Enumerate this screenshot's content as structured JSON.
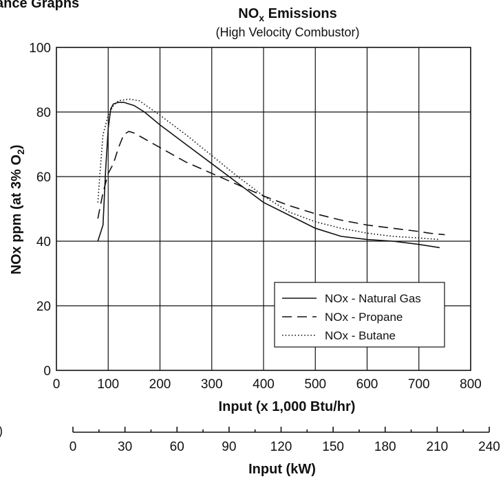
{
  "page": {
    "corner_heading": "ance Graphs",
    "margin_char": ")"
  },
  "chart_data": {
    "type": "line",
    "title_main": "NO",
    "title_sub": "x",
    "title_suffix": " Emissions",
    "subtitle": "(High Velocity Combustor)",
    "ylabel": "NOx ppm (at 3% O",
    "ylabel_sub": "2",
    "ylabel_suffix": ")",
    "xlabel": "Input (x 1,000 Btu/hr)",
    "x2label": "Input (kW)",
    "xlim": [
      0,
      800
    ],
    "ylim": [
      0,
      100
    ],
    "x_ticks": [
      "0",
      "100",
      "200",
      "300",
      "400",
      "500",
      "600",
      "700",
      "800"
    ],
    "y_ticks": [
      "0",
      "20",
      "40",
      "60",
      "80",
      "100"
    ],
    "x2lim": [
      0,
      240
    ],
    "x2_ticks": [
      "0",
      "30",
      "60",
      "90",
      "120",
      "150",
      "180",
      "210",
      "240"
    ],
    "grid": true,
    "legend_position": "bottom-right",
    "series": [
      {
        "name": "NOx - Natural Gas",
        "style": "solid",
        "x": [
          80,
          90,
          95,
          100,
          105,
          110,
          120,
          130,
          150,
          170,
          200,
          250,
          300,
          350,
          400,
          450,
          500,
          550,
          600,
          650,
          700,
          740
        ],
        "y": [
          40,
          45,
          62,
          75,
          81,
          82.5,
          83,
          83,
          82,
          80,
          76,
          70,
          64,
          58,
          52,
          48,
          44,
          41.5,
          40.5,
          40,
          39,
          38
        ]
      },
      {
        "name": "NOx - Propane",
        "style": "dashed",
        "x": [
          80,
          90,
          100,
          110,
          120,
          130,
          140,
          150,
          200,
          250,
          300,
          350,
          400,
          450,
          500,
          550,
          600,
          650,
          700,
          720,
          750
        ],
        "y": [
          47,
          55,
          61,
          64,
          69,
          73,
          74,
          73.5,
          69,
          64.5,
          61,
          57.5,
          54,
          51,
          48.5,
          46.5,
          45,
          44,
          43,
          42.5,
          42
        ]
      },
      {
        "name": "NOx - Butane",
        "style": "dotted",
        "x": [
          80,
          85,
          90,
          100,
          110,
          120,
          140,
          160,
          200,
          250,
          300,
          350,
          400,
          450,
          500,
          550,
          600,
          650,
          700,
          740
        ],
        "y": [
          52,
          63,
          73,
          79,
          82,
          83.5,
          84,
          83.5,
          79,
          73,
          66.5,
          60,
          54,
          49,
          46,
          44,
          42.5,
          41.5,
          41,
          40.5
        ]
      }
    ]
  }
}
